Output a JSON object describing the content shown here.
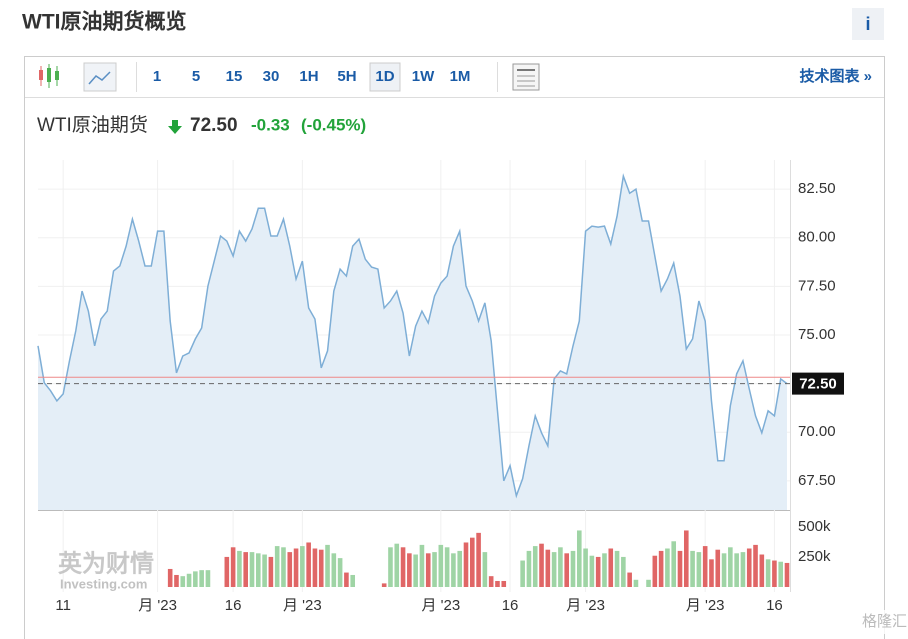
{
  "header": {
    "title": "WTI原油期货概览",
    "info_button": "i"
  },
  "toolbar": {
    "intervals": [
      "1",
      "5",
      "15",
      "30",
      "1H",
      "5H",
      "1D",
      "1W",
      "1M"
    ],
    "active_interval": "1D",
    "technical_chart": "技术图表 »"
  },
  "quote": {
    "name": "WTI原油期货",
    "price": "72.50",
    "change": "-0.33",
    "change_percent": "(-0.45%)"
  },
  "watermark": {
    "brand": "英为财情",
    "site": "Investing.com"
  },
  "corner_logo": "格隆汇",
  "chart_data": {
    "type": "area",
    "line_color": "#7eaed6",
    "fill_color": "#e4eef7",
    "up_color": "#9fd4a5",
    "down_color": "#e06666",
    "categories": [
      null,
      null,
      null,
      null,
      "11",
      null,
      null,
      null,
      null,
      null,
      null,
      null,
      null,
      null,
      null,
      null,
      null,
      null,
      null,
      "月 '23",
      null,
      null,
      null,
      null,
      null,
      null,
      null,
      null,
      null,
      null,
      null,
      "16",
      null,
      null,
      null,
      null,
      null,
      null,
      null,
      null,
      null,
      null,
      "月 '23",
      null,
      null,
      null,
      null,
      null,
      null,
      null,
      null,
      null,
      null,
      null,
      null,
      null,
      null,
      null,
      null,
      null,
      null,
      null,
      null,
      null,
      "月 '23",
      null,
      null,
      null,
      null,
      null,
      null,
      null,
      null,
      null,
      null,
      "16",
      null,
      null,
      null,
      null,
      null,
      null,
      null,
      null,
      null,
      null,
      null,
      "月 '23",
      null,
      null,
      null,
      null,
      null,
      null,
      null,
      null,
      null,
      null,
      null,
      null,
      null,
      null,
      null,
      null,
      null,
      null,
      "月 '23",
      null,
      null,
      null,
      null,
      null,
      null,
      null,
      null,
      null,
      null,
      "16",
      null,
      null
    ],
    "values": [
      74.44,
      72.54,
      72.13,
      71.61,
      71.97,
      73.67,
      75.21,
      77.26,
      76.23,
      74.44,
      75.82,
      76.23,
      78.29,
      78.55,
      79.57,
      80.96,
      79.83,
      78.55,
      78.55,
      80.34,
      80.34,
      75.72,
      73.05,
      73.92,
      74.08,
      74.8,
      75.36,
      77.52,
      78.8,
      80.09,
      79.83,
      79.06,
      80.34,
      79.83,
      80.45,
      81.52,
      81.52,
      80.09,
      80.09,
      80.96,
      79.57,
      77.88,
      78.8,
      76.39,
      75.82,
      73.31,
      74.18,
      77.26,
      78.39,
      78.03,
      79.57,
      79.93,
      78.9,
      78.49,
      78.39,
      76.39,
      76.75,
      77.26,
      76.13,
      73.92,
      75.46,
      76.23,
      75.62,
      77.0,
      77.67,
      78.03,
      79.57,
      80.34,
      77.52,
      76.75,
      75.72,
      76.65,
      74.7,
      71.1,
      67.5,
      68.28,
      66.73,
      67.61,
      69.3,
      70.84,
      69.97,
      69.3,
      72.74,
      73.15,
      73.0,
      74.44,
      75.72,
      80.34,
      80.6,
      80.55,
      80.6,
      79.68,
      81.11,
      83.17,
      82.29,
      82.5,
      80.86,
      80.86,
      79.06,
      77.26,
      77.88,
      78.7,
      77.0,
      74.28,
      74.8,
      76.75,
      75.72,
      71.61,
      68.53,
      68.53,
      71.36,
      73.0,
      73.67,
      72.23,
      70.84,
      69.97,
      71.1,
      70.84,
      72.74,
      72.5
    ],
    "volume": [
      null,
      null,
      null,
      null,
      null,
      null,
      null,
      null,
      null,
      null,
      null,
      null,
      null,
      null,
      null,
      null,
      null,
      null,
      null,
      null,
      null,
      150000,
      100000,
      90000,
      110000,
      130000,
      140000,
      140000,
      null,
      null,
      250000,
      330000,
      300000,
      290000,
      290000,
      280000,
      270000,
      250000,
      340000,
      330000,
      290000,
      320000,
      340000,
      370000,
      320000,
      310000,
      350000,
      280000,
      240000,
      120000,
      100000,
      null,
      null,
      null,
      null,
      30000,
      330000,
      360000,
      330000,
      280000,
      270000,
      350000,
      280000,
      290000,
      350000,
      330000,
      280000,
      300000,
      370000,
      410000,
      450000,
      290000,
      90000,
      50000,
      50000,
      null,
      null,
      220000,
      300000,
      340000,
      360000,
      310000,
      290000,
      330000,
      280000,
      300000,
      470000,
      320000,
      260000,
      250000,
      280000,
      320000,
      300000,
      250000,
      120000,
      60000,
      null,
      60000,
      260000,
      300000,
      320000,
      380000,
      300000,
      470000,
      300000,
      290000,
      340000,
      230000,
      310000,
      280000,
      330000,
      280000,
      290000,
      320000,
      350000,
      270000,
      230000,
      220000,
      210000,
      200000
    ],
    "previous_close": 72.83,
    "ylim": [
      66,
      84
    ],
    "yticks": [
      {
        "value": 67.5,
        "label": "67.50"
      },
      {
        "value": 70,
        "label": "70.00"
      },
      {
        "value": 72.5,
        "label": "72.50"
      },
      {
        "value": 75,
        "label": "75.00"
      },
      {
        "value": 77.5,
        "label": "77.50"
      },
      {
        "value": 80,
        "label": "80.00"
      },
      {
        "value": 82.5,
        "label": "82.50"
      }
    ],
    "y2lim": [
      0,
      640000
    ],
    "y2ticks": [
      {
        "value": 250000,
        "label": "250k"
      },
      {
        "value": 500000,
        "label": "500k"
      }
    ],
    "grid": true
  }
}
